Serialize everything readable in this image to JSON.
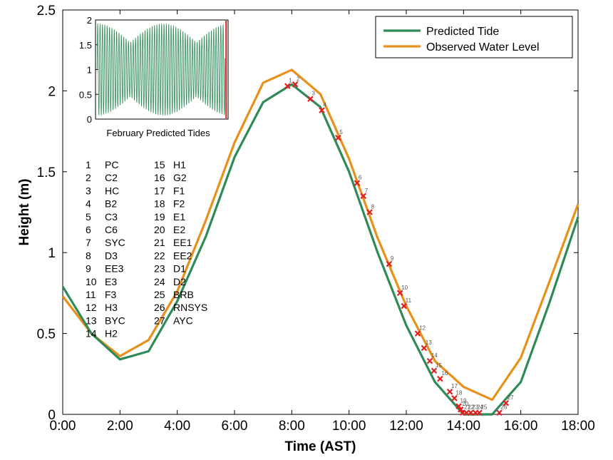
{
  "chart_data": {
    "type": "line",
    "xlabel": "Time (AST)",
    "ylabel": "Height (m)",
    "x_ticks": [
      "0:00",
      "2:00",
      "4:00",
      "6:00",
      "8:00",
      "10:00",
      "12:00",
      "14:00",
      "16:00",
      "18:00"
    ],
    "y_ticks": [
      "0",
      "0.5",
      "1",
      "1.5",
      "2",
      "2.5"
    ],
    "xlim": [
      0,
      18
    ],
    "ylim": [
      0,
      2.5
    ],
    "legend_position": "top-right",
    "series": [
      {
        "name": "Predicted Tide",
        "color": "#2e8b57",
        "x": [
          0,
          1,
          2,
          3,
          4,
          5,
          6,
          7,
          8,
          9,
          10,
          11,
          12,
          13,
          14,
          15,
          16,
          17,
          18
        ],
        "y": [
          0.79,
          0.5,
          0.34,
          0.39,
          0.7,
          1.1,
          1.59,
          1.93,
          2.04,
          1.9,
          1.5,
          1.0,
          0.55,
          0.2,
          0.0,
          0.0,
          0.2,
          0.69,
          1.22
        ]
      },
      {
        "name": "Observed Water Level",
        "color": "#e8901a",
        "x": [
          0,
          1,
          2,
          3,
          4,
          5,
          6,
          7,
          8,
          9,
          10,
          11,
          12,
          13,
          14,
          15,
          16,
          17,
          18
        ],
        "y": [
          0.73,
          0.5,
          0.36,
          0.46,
          0.76,
          1.2,
          1.68,
          2.05,
          2.13,
          1.98,
          1.58,
          1.09,
          0.67,
          0.33,
          0.17,
          0.09,
          0.35,
          0.82,
          1.3
        ]
      }
    ],
    "stations": {
      "ids": [
        "1",
        "2",
        "3",
        "4",
        "5",
        "6",
        "7",
        "8",
        "9",
        "10",
        "11",
        "12",
        "13",
        "14",
        "15",
        "16",
        "17",
        "18",
        "19",
        "20",
        "21",
        "22",
        "23",
        "24",
        "25",
        "26",
        "27"
      ],
      "names": [
        "PC",
        "C2",
        "HC",
        "B2",
        "C3",
        "C6",
        "SYC",
        "D3",
        "EE3",
        "E3",
        "F3",
        "H3",
        "BYC",
        "H2",
        "H1",
        "G2",
        "F1",
        "F2",
        "E1",
        "E2",
        "EE1",
        "EE2",
        "D1",
        "D2",
        "BRB",
        "RNSYS",
        "AYC"
      ],
      "x": [
        7.85,
        8.12,
        8.65,
        9.05,
        9.62,
        10.28,
        10.5,
        10.72,
        11.4,
        11.78,
        11.92,
        12.4,
        12.62,
        12.82,
        12.97,
        13.18,
        13.52,
        13.68,
        13.83,
        13.9,
        13.97,
        14.1,
        14.25,
        14.42,
        14.55,
        15.25,
        15.48
      ],
      "y": [
        2.03,
        2.04,
        1.95,
        1.88,
        1.71,
        1.43,
        1.35,
        1.25,
        0.93,
        0.75,
        0.67,
        0.5,
        0.41,
        0.33,
        0.27,
        0.22,
        0.14,
        0.1,
        0.05,
        0.03,
        0.01,
        0.01,
        0.01,
        0.01,
        0.01,
        0.01,
        0.07
      ]
    },
    "inset": {
      "title": "February Predicted Tides",
      "y_ticks": [
        "0",
        "0.5",
        "1",
        "1.5",
        "2"
      ],
      "ylim": [
        0,
        2
      ],
      "cycles": 56,
      "color": "#2e8b57",
      "marker_color": "#e02020"
    }
  }
}
